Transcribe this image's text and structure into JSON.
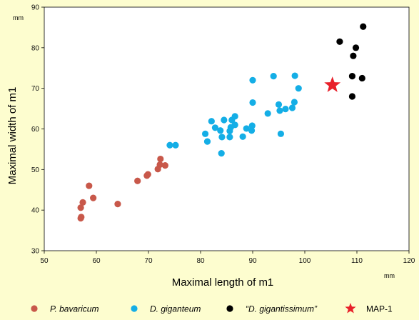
{
  "chart_data": {
    "type": "scatter",
    "xlabel": "Maximal length of m1",
    "ylabel": "Maximal width of m1",
    "x_unit": "mm",
    "y_unit": "mm",
    "xlim": [
      50,
      120
    ],
    "ylim": [
      30,
      90
    ],
    "xticks": [
      50,
      60,
      70,
      80,
      90,
      100,
      110,
      120
    ],
    "yticks": [
      30,
      40,
      50,
      60,
      70,
      80,
      90
    ],
    "grid": false,
    "legend_position": "bottom",
    "series": [
      {
        "name": "P. bavaricum",
        "italic": true,
        "color": "#c8584a",
        "marker": "circle",
        "points": [
          [
            57.0,
            38.0
          ],
          [
            57.1,
            38.3
          ],
          [
            57.0,
            40.6
          ],
          [
            57.4,
            41.9
          ],
          [
            58.6,
            46.0
          ],
          [
            59.4,
            43.0
          ],
          [
            64.1,
            41.5
          ],
          [
            67.9,
            47.2
          ],
          [
            69.7,
            48.5
          ],
          [
            69.9,
            48.8
          ],
          [
            71.8,
            50.1
          ],
          [
            72.2,
            51.2
          ],
          [
            72.3,
            52.6
          ],
          [
            73.2,
            51.0
          ]
        ]
      },
      {
        "name": "D. giganteum",
        "italic": true,
        "color": "#14aee6",
        "marker": "circle",
        "points": [
          [
            74.1,
            56.0
          ],
          [
            75.2,
            56.0
          ],
          [
            80.9,
            58.8
          ],
          [
            81.3,
            56.9
          ],
          [
            82.1,
            61.9
          ],
          [
            82.8,
            60.3
          ],
          [
            83.8,
            59.6
          ],
          [
            84.0,
            54.0
          ],
          [
            84.1,
            58.0
          ],
          [
            84.5,
            62.2
          ],
          [
            85.6,
            58.0
          ],
          [
            85.6,
            59.5
          ],
          [
            85.8,
            60.4
          ],
          [
            86.0,
            62.2
          ],
          [
            86.6,
            63.1
          ],
          [
            86.6,
            61.0
          ],
          [
            88.1,
            58.1
          ],
          [
            88.8,
            60.1
          ],
          [
            89.8,
            59.6
          ],
          [
            89.9,
            60.8
          ],
          [
            90.0,
            66.5
          ],
          [
            90.0,
            72.0
          ],
          [
            92.9,
            63.8
          ],
          [
            94.0,
            73.0
          ],
          [
            95.0,
            66.0
          ],
          [
            95.2,
            64.5
          ],
          [
            95.4,
            58.8
          ],
          [
            96.3,
            64.9
          ],
          [
            97.6,
            65.2
          ],
          [
            98.0,
            66.6
          ],
          [
            98.1,
            73.1
          ],
          [
            98.8,
            70.0
          ]
        ]
      },
      {
        "name": "“D. gigantissimum”",
        "italic": true,
        "color": "#000000",
        "marker": "circle",
        "points": [
          [
            106.7,
            81.5
          ],
          [
            109.1,
            73.0
          ],
          [
            109.1,
            68.0
          ],
          [
            109.3,
            78.0
          ],
          [
            109.8,
            80.0
          ],
          [
            111.0,
            72.5
          ],
          [
            111.2,
            85.2
          ]
        ]
      },
      {
        "name": "MAP-1",
        "italic": false,
        "color": "#e8202a",
        "marker": "star",
        "points": [
          [
            105.3,
            70.8
          ]
        ]
      }
    ]
  }
}
